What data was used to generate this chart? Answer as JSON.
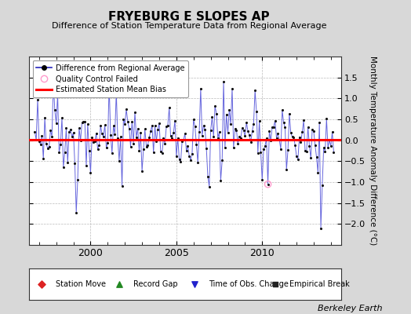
{
  "title": "FRYEBURG E SLOPES AP",
  "subtitle": "Difference of Station Temperature Data from Regional Average",
  "ylabel": "Monthly Temperature Anomaly Difference (°C)",
  "watermark": "Berkeley Earth",
  "bias": 0.02,
  "bias_color": "#ff0000",
  "line_color": "#6666dd",
  "line_color_dark": "#2222bb",
  "marker_color": "#111111",
  "qc_fail_color": "#ff99cc",
  "background_color": "#d8d8d8",
  "plot_bg_color": "#ffffff",
  "ylim": [
    -2.5,
    2.0
  ],
  "yticks": [
    -2.0,
    -1.5,
    -1.0,
    -0.5,
    0.0,
    0.5,
    1.0,
    1.5
  ],
  "ytick_top": 2.0,
  "xstart": 1996.4,
  "xend": 2014.6,
  "xticks": [
    2000,
    2005,
    2010
  ],
  "seed": 42,
  "n_points": 210,
  "qc_fail_index": 163,
  "qc_fail_value": -1.05
}
